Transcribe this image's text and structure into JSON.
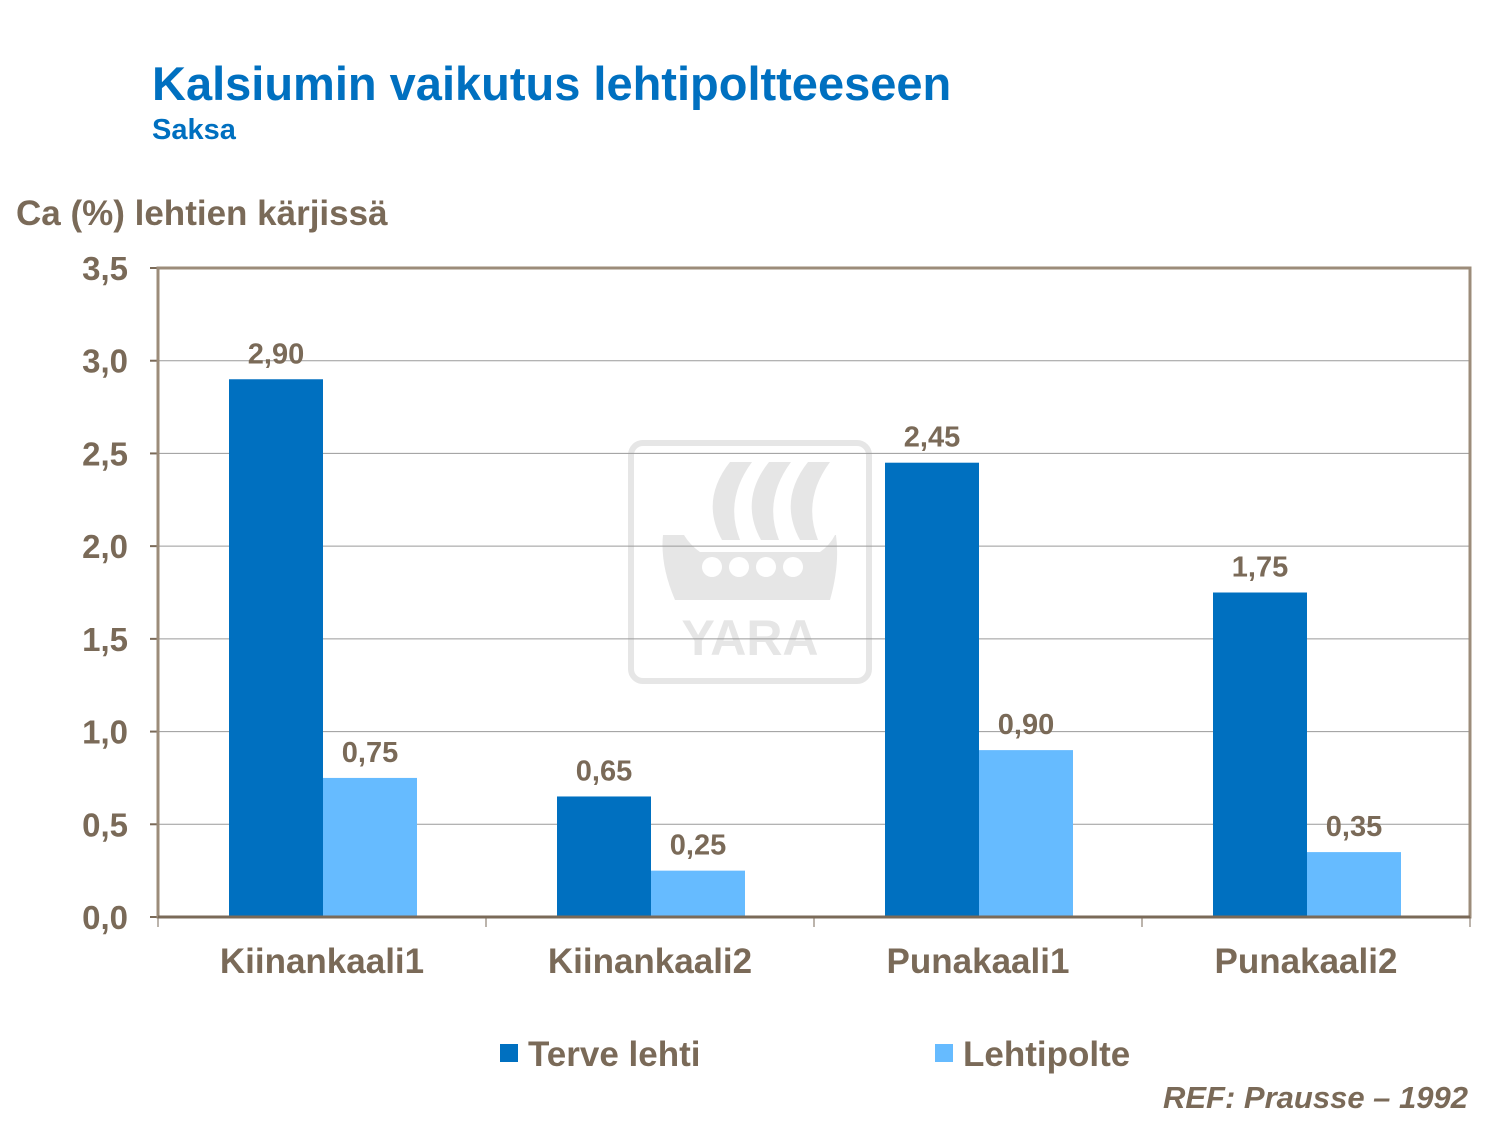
{
  "chart_data": {
    "type": "bar",
    "title": "Kalsiumin vaikutus lehtipoltteeseen",
    "subtitle": "Saksa",
    "ylabel": "Ca (%) lehtien kärjissä",
    "xlabel": "",
    "ylim": [
      0,
      3.5
    ],
    "yticks": [
      "0,0",
      "0,5",
      "1,0",
      "1,5",
      "2,0",
      "2,5",
      "3,0",
      "3,5"
    ],
    "grid": true,
    "legend_placement": "bottom",
    "categories": [
      "Kiinankaali1",
      "Kiinankaali2",
      "Punakaali1",
      "Punakaali2"
    ],
    "series": [
      {
        "name": "Terve lehti",
        "color": "#0070C0",
        "values": [
          2.9,
          0.65,
          2.45,
          1.75
        ],
        "labels": [
          "2,90",
          "0,65",
          "2,45",
          "1,75"
        ]
      },
      {
        "name": "Lehtipolte",
        "color": "#66BBFF",
        "values": [
          0.75,
          0.25,
          0.9,
          0.35
        ],
        "labels": [
          "0,75",
          "0,25",
          "0,90",
          "0,35"
        ]
      }
    ],
    "source": "REF: Prausse – 1992"
  },
  "watermark": {
    "text": "YARA",
    "color": "#E6E6E6"
  }
}
